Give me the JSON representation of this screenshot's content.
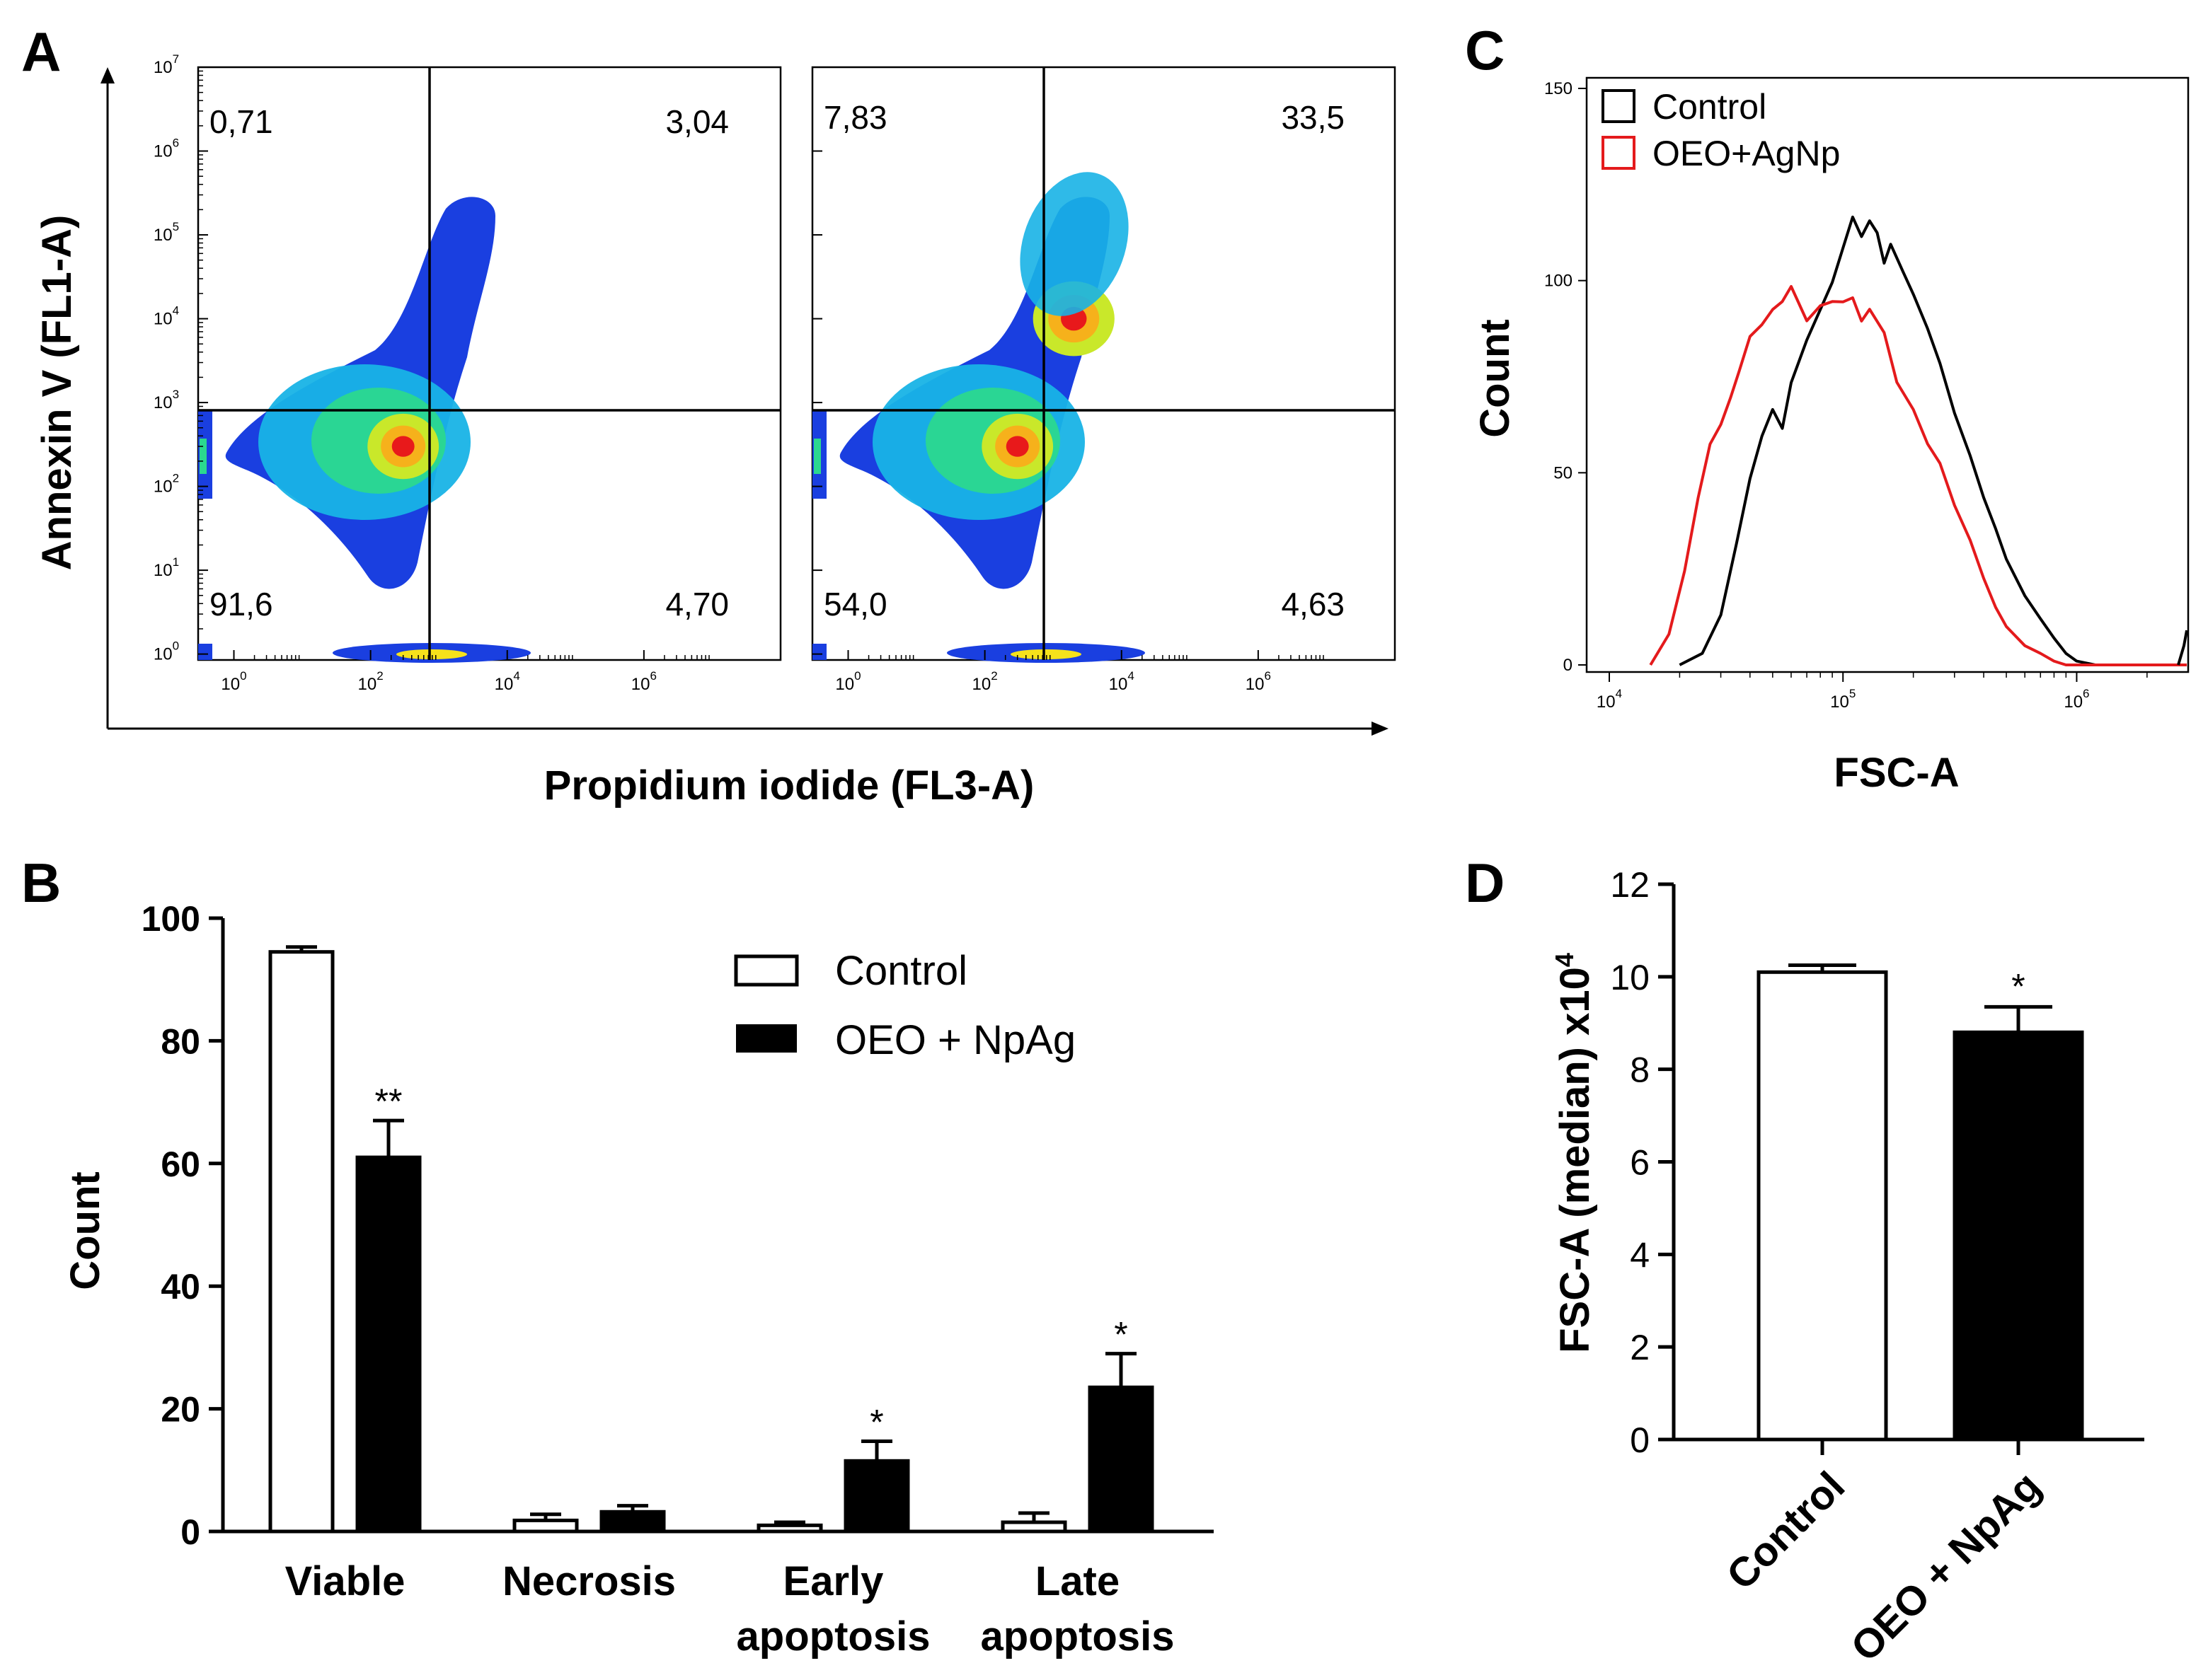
{
  "figure": {
    "panels": {
      "A": "A",
      "B": "B",
      "C": "C",
      "D": "D"
    }
  },
  "chart_data": [
    {
      "id": "A",
      "type": "scatter",
      "subtype": "flow-cytometry-density-plot",
      "xlabel": "Propidium iodide (FL3-A)",
      "ylabel": "Annexin V (FL1-A)",
      "x_scale": "log",
      "y_scale": "log",
      "xlim": [
        0.3,
        100000000
      ],
      "ylim": [
        0.85,
        10000000
      ],
      "gates": {
        "x": 700,
        "y": 1000
      },
      "x_ticks": [
        {
          "base": "10",
          "exp": "0",
          "value": 1
        },
        {
          "base": "10",
          "exp": "2",
          "value": 100
        },
        {
          "base": "10",
          "exp": "4",
          "value": 10000
        },
        {
          "base": "10",
          "exp": "6",
          "value": 1000000
        }
      ],
      "y_ticks": [
        {
          "base": "10",
          "exp": "0",
          "value": 1
        },
        {
          "base": "10",
          "exp": "1",
          "value": 10
        },
        {
          "base": "10",
          "exp": "2",
          "value": 100
        },
        {
          "base": "10",
          "exp": "3",
          "value": 1000
        },
        {
          "base": "10",
          "exp": "4",
          "value": 10000
        },
        {
          "base": "10",
          "exp": "5",
          "value": 100000
        },
        {
          "base": "10",
          "exp": "6",
          "value": 1000000
        },
        {
          "base": "10",
          "exp": "7",
          "value": 10000000
        }
      ],
      "plots": [
        {
          "name": "Control",
          "quadrants": {
            "upper_left": "0,71",
            "upper_right": "3,04",
            "lower_left": "91,6",
            "lower_right": "4,70"
          },
          "density_peaks": [
            {
              "x": 300,
              "y": 300,
              "level": "high"
            }
          ]
        },
        {
          "name": "OEO+AgNp",
          "quadrants": {
            "upper_left": "7,83",
            "upper_right": "33,5",
            "lower_left": "54,0",
            "lower_right": "4,63"
          },
          "density_peaks": [
            {
              "x": 300,
              "y": 300,
              "level": "high"
            },
            {
              "x": 2000,
              "y": 10000,
              "level": "medium"
            }
          ]
        }
      ]
    },
    {
      "id": "B",
      "type": "bar",
      "categories": [
        "Viable",
        "Necrosis",
        "Early\napoptosis",
        "Late\napoptosis"
      ],
      "category_lines": [
        [
          "Viable"
        ],
        [
          "Necrosis"
        ],
        [
          "Early",
          "apoptosis"
        ],
        [
          "Late",
          "apoptosis"
        ]
      ],
      "series": [
        {
          "name": "Control",
          "fill": "#ffffff",
          "values": [
            94.5,
            1.8,
            1.0,
            1.5
          ],
          "errors": [
            0.8,
            1.0,
            0.5,
            1.5
          ],
          "significance": [
            "",
            "",
            "",
            ""
          ]
        },
        {
          "name": "OEO + NpAg",
          "fill": "#000000",
          "values": [
            61,
            3.2,
            11.5,
            23.5
          ],
          "errors": [
            6,
            1.0,
            3.2,
            5.5
          ],
          "significance": [
            "**",
            "",
            "*",
            "*"
          ]
        }
      ],
      "xlabel": "",
      "ylabel": "Count",
      "ylim": [
        0,
        100
      ],
      "yticks": [
        0,
        20,
        40,
        60,
        80,
        100
      ],
      "legend": "top-right"
    },
    {
      "id": "C",
      "type": "line",
      "subtype": "histogram",
      "xlabel": "FSC-A",
      "ylabel": "Count",
      "x_scale": "log",
      "xlim": [
        8000,
        3000000
      ],
      "ylim": [
        0,
        150
      ],
      "yticks": [
        0,
        50,
        100,
        150
      ],
      "x_ticks": [
        {
          "base": "10",
          "exp": "4",
          "value": 10000
        },
        {
          "base": "10",
          "exp": "5",
          "value": 100000
        },
        {
          "base": "10",
          "exp": "6",
          "value": 1000000
        }
      ],
      "series": [
        {
          "name": "Control",
          "color": "#000000",
          "x": [
            20000,
            25000,
            30000,
            35000,
            40000,
            45000,
            50000,
            55000,
            60000,
            70000,
            80000,
            90000,
            100000,
            110000,
            120000,
            130000,
            140000,
            150000,
            160000,
            180000,
            200000,
            230000,
            260000,
            300000,
            350000,
            400000,
            450000,
            500000,
            600000,
            700000,
            800000,
            900000,
            1000000,
            1200000,
            1500000
          ],
          "y": [
            0,
            3,
            13,
            32,
            48,
            60,
            66,
            62,
            73,
            85,
            92,
            100,
            108,
            117,
            111,
            116,
            112,
            105,
            109,
            103,
            96,
            88,
            78,
            66,
            54,
            44,
            35,
            28,
            18,
            12,
            7,
            3,
            1,
            0,
            0
          ]
        },
        {
          "name": "OEO+AgNp",
          "color": "#e41a1c",
          "x": [
            15000,
            18000,
            21000,
            24000,
            27000,
            30000,
            33000,
            36000,
            40000,
            45000,
            50000,
            55000,
            60000,
            70000,
            80000,
            90000,
            100000,
            110000,
            120000,
            130000,
            150000,
            170000,
            200000,
            230000,
            260000,
            300000,
            350000,
            400000,
            450000,
            500000,
            600000,
            700000,
            800000,
            900000
          ],
          "y": [
            0,
            8,
            24,
            44,
            57,
            63,
            69,
            77,
            85,
            89,
            92,
            95,
            98,
            90,
            93,
            95,
            94,
            96,
            89,
            93,
            86,
            74,
            66,
            58,
            52,
            42,
            32,
            23,
            15,
            10,
            5,
            3,
            1,
            0
          ]
        }
      ],
      "legend": "top-left"
    },
    {
      "id": "D",
      "type": "bar",
      "categories": [
        "Control",
        "OEO + NpAg"
      ],
      "values": [
        10.1,
        8.8
      ],
      "errors": [
        0.15,
        0.55
      ],
      "fills": [
        "#ffffff",
        "#000000"
      ],
      "significance": [
        "",
        "*"
      ],
      "ylabel_main": "FSC-A (median) x10",
      "ylabel_exp": "4",
      "ylim": [
        0,
        12
      ],
      "yticks": [
        0,
        2,
        4,
        6,
        8,
        10,
        12
      ]
    }
  ]
}
